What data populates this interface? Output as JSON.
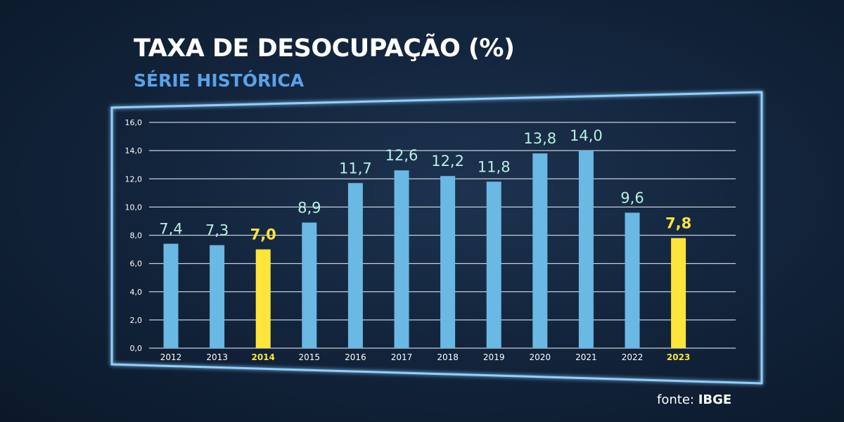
{
  "chart_data": {
    "type": "bar",
    "title": "TAXA DE DESOCUPAÇÃO (%)",
    "subtitle": "SÉRIE HISTÓRICA",
    "categories": [
      "2012",
      "2013",
      "2014",
      "2015",
      "2016",
      "2017",
      "2018",
      "2019",
      "2020",
      "2021",
      "2022",
      "2023"
    ],
    "values": [
      7.4,
      7.3,
      7.0,
      8.9,
      11.7,
      12.6,
      12.2,
      11.8,
      13.8,
      14.0,
      9.6,
      7.8
    ],
    "data_labels": [
      "7,4",
      "7,3",
      "7,0",
      "8,9",
      "11,7",
      "12,6",
      "12,2",
      "11,8",
      "13,8",
      "14,0",
      "9,6",
      "7,8"
    ],
    "highlighted": [
      "2014",
      "2023"
    ],
    "y_ticks": [
      "0,0",
      "2,0",
      "4,0",
      "6,0",
      "8,0",
      "10,0",
      "12,0",
      "14,0",
      "16,0"
    ],
    "ylim": [
      0,
      16
    ],
    "grid": true,
    "xlabel": "",
    "ylabel": "",
    "colors": {
      "bar": "#6ab8e4",
      "highlight": "#ffe53b",
      "label": "#b8f0e2",
      "frame": "#8fd0ff"
    },
    "source": {
      "prefix": "fonte:",
      "name": "IBGE"
    }
  }
}
